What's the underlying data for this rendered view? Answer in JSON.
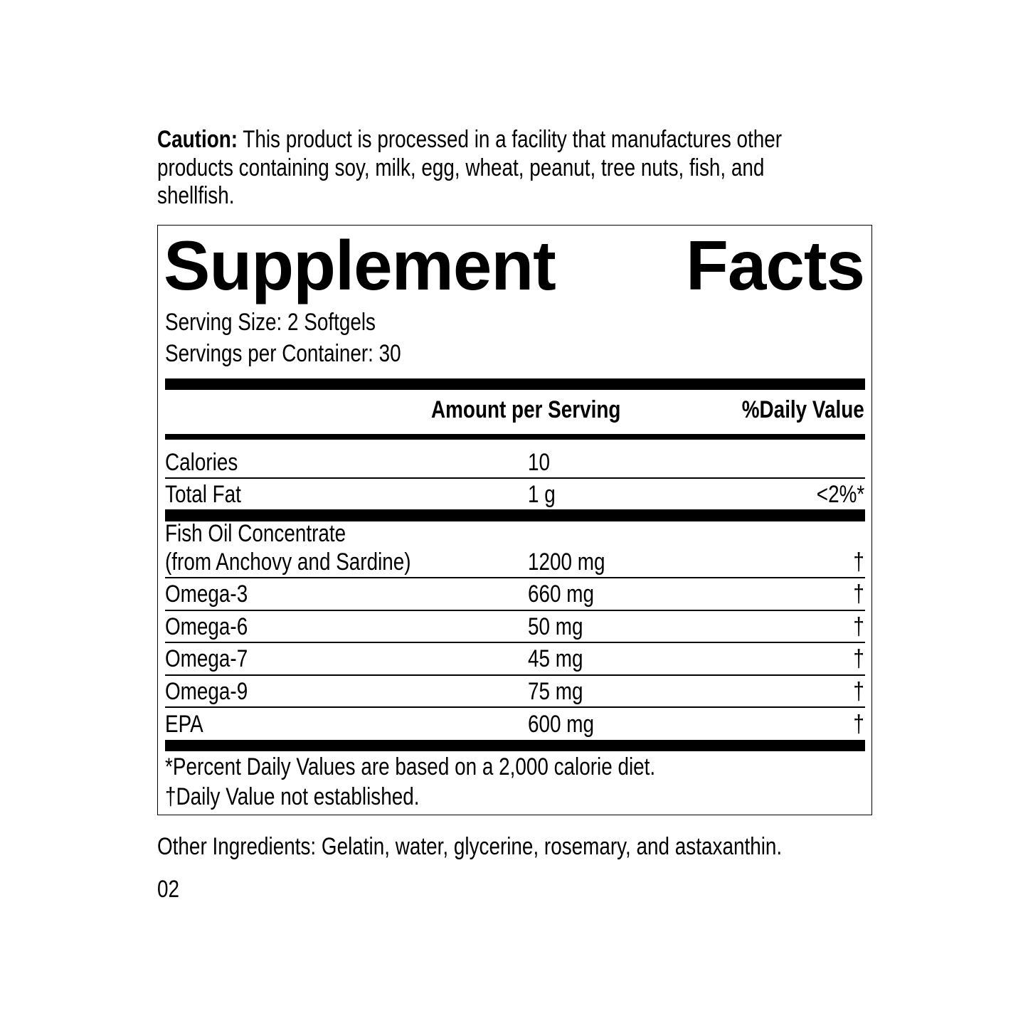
{
  "caution": {
    "label": "Caution:",
    "lines": [
      "This product is processed in a facility that manufactures other",
      "products containing soy, milk, egg, wheat, peanut, tree nuts, fish, and",
      "shellfish."
    ]
  },
  "facts": {
    "title_word1": "Supplement",
    "title_word2": "Facts",
    "serving_size": "Serving Size: 2 Softgels",
    "servings_per_container": "Servings per Container: 30",
    "header_amount": "Amount per Serving",
    "header_dv": "%Daily Value",
    "rows": [
      {
        "name": "Calories",
        "amount": "10",
        "dv": ""
      },
      {
        "name": "Total Fat",
        "amount": "1 g",
        "dv": "<2%*"
      },
      {
        "name": "Fish Oil Concentrate",
        "name2": "(from Anchovy and Sardine)",
        "amount": "1200 mg",
        "dv": "†"
      },
      {
        "name": "Omega-3",
        "amount": "660 mg",
        "dv": "†"
      },
      {
        "name": "Omega-6",
        "amount": "50 mg",
        "dv": "†"
      },
      {
        "name": "Omega-7",
        "amount": "45 mg",
        "dv": "†"
      },
      {
        "name": "Omega-9",
        "amount": "75 mg",
        "dv": "†"
      },
      {
        "name": "EPA",
        "amount": "600 mg",
        "dv": "†"
      }
    ],
    "footnote1": "*Percent Daily Values are based on a 2,000 calorie diet.",
    "footnote2": "†Daily Value not established."
  },
  "other_ingredients": "Other Ingredients: Gelatin, water, glycerine, rosemary, and astaxanthin.",
  "page_number": "02"
}
